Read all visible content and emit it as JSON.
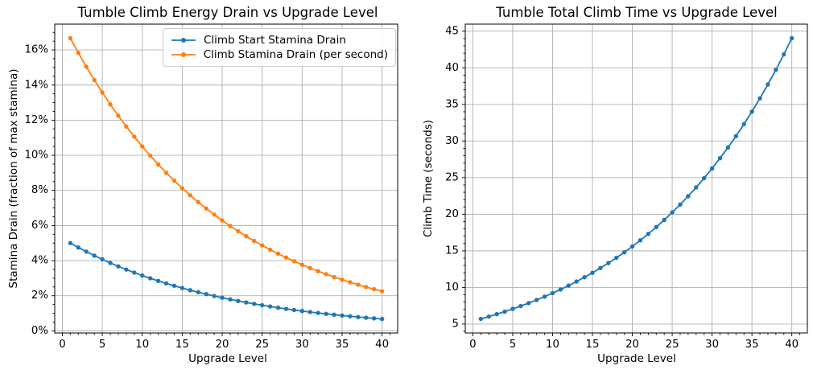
{
  "figure": {
    "background": "#ffffff",
    "grid_color": "#b0b0b0",
    "spine_color": "#000000"
  },
  "chart_data": [
    {
      "type": "line",
      "title": "Tumble Climb Energy Drain vs Upgrade Level",
      "xlabel": "Upgrade Level",
      "ylabel": "Stamina Drain (fraction of max stamina)",
      "grid": true,
      "legend_position": "upper center",
      "xlim": [
        -0.95,
        41.95
      ],
      "ylim": [
        -0.12,
        17.47
      ],
      "xticks": [
        0,
        5,
        10,
        15,
        20,
        25,
        30,
        35,
        40
      ],
      "yticks": [
        0,
        2,
        4,
        6,
        8,
        10,
        12,
        14,
        16
      ],
      "ytick_suffix": "%",
      "x_minor_step": 1,
      "y_minor_step": 0.5,
      "x": [
        1,
        2,
        3,
        4,
        5,
        6,
        7,
        8,
        9,
        10,
        11,
        12,
        13,
        14,
        15,
        16,
        17,
        18,
        19,
        20,
        21,
        22,
        23,
        24,
        25,
        26,
        27,
        28,
        29,
        30,
        31,
        32,
        33,
        34,
        35,
        36,
        37,
        38,
        39,
        40
      ],
      "series": [
        {
          "name": "Climb Start Stamina Drain",
          "color": "#1f77b4",
          "values": [
            5.0,
            4.75,
            4.513,
            4.287,
            4.073,
            3.869,
            3.675,
            3.492,
            3.317,
            3.151,
            2.994,
            2.844,
            2.702,
            2.567,
            2.438,
            2.316,
            2.201,
            2.091,
            1.986,
            1.887,
            1.792,
            1.703,
            1.618,
            1.537,
            1.46,
            1.387,
            1.318,
            1.252,
            1.189,
            1.13,
            1.073,
            1.02,
            0.969,
            0.92,
            0.874,
            0.83,
            0.789,
            0.749,
            0.712,
            0.676
          ]
        },
        {
          "name": "Climb Stamina Drain (per second)",
          "color": "#ff7f0e",
          "values": [
            16.667,
            15.833,
            15.042,
            14.29,
            13.575,
            12.896,
            12.252,
            11.639,
            11.057,
            10.504,
            9.979,
            9.48,
            9.006,
            8.556,
            8.128,
            7.722,
            7.335,
            6.969,
            6.62,
            6.289,
            5.975,
            5.676,
            5.392,
            5.123,
            4.866,
            4.623,
            4.392,
            4.172,
            3.964,
            3.766,
            3.577,
            3.398,
            3.229,
            3.067,
            2.914,
            2.768,
            2.63,
            2.498,
            2.373,
            2.255
          ]
        }
      ]
    },
    {
      "type": "line",
      "title": "Tumble Total Climb Time vs Upgrade Level",
      "xlabel": "Upgrade Level",
      "ylabel": "Climb Time (seconds)",
      "grid": true,
      "legend_position": "none",
      "xlim": [
        -0.95,
        41.95
      ],
      "ylim": [
        3.78,
        45.97
      ],
      "xticks": [
        0,
        5,
        10,
        15,
        20,
        25,
        30,
        35,
        40
      ],
      "yticks": [
        5,
        10,
        15,
        20,
        25,
        30,
        35,
        40,
        45
      ],
      "ytick_suffix": "",
      "x_minor_step": 1,
      "y_minor_step": 1,
      "x": [
        1,
        2,
        3,
        4,
        5,
        6,
        7,
        8,
        9,
        10,
        11,
        12,
        13,
        14,
        15,
        16,
        17,
        18,
        19,
        20,
        21,
        22,
        23,
        24,
        25,
        26,
        27,
        28,
        29,
        30,
        31,
        32,
        33,
        34,
        35,
        36,
        37,
        38,
        39,
        40
      ],
      "series": [
        {
          "name": "Climb Time",
          "color": "#1f77b4",
          "values": [
            5.7,
            6.016,
            6.348,
            6.698,
            7.066,
            7.454,
            7.862,
            8.292,
            8.744,
            9.22,
            9.721,
            10.248,
            10.804,
            11.388,
            12.003,
            12.651,
            13.332,
            14.05,
            14.805,
            15.6,
            16.437,
            17.318,
            18.245,
            19.221,
            20.249,
            21.33,
            22.468,
            23.667,
            24.928,
            26.256,
            27.654,
            29.125,
            30.674,
            32.305,
            34.02,
            35.827,
            37.729,
            39.73,
            41.837,
            44.054
          ]
        }
      ]
    }
  ]
}
